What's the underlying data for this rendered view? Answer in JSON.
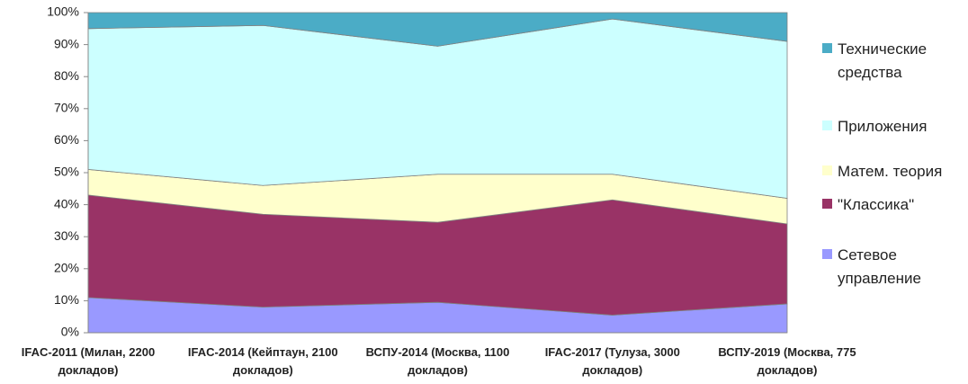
{
  "chart_data": {
    "type": "stacked_area",
    "categories": [
      "IFAC-2011 (Милан, 2200 докладов)",
      "IFAC-2014 (Кейптаун, 2100 докладов)",
      "ВСПУ-2014 (Москва, 1100 докладов)",
      "IFAC-2017 (Тулуза, 3000 докладов)",
      "ВСПУ-2019 (Москва, 775 докладов)"
    ],
    "series": [
      {
        "name": "Сетевое управление",
        "color": "#9999ff",
        "values": [
          11,
          8,
          9.5,
          5.5,
          9
        ]
      },
      {
        "name": "\"Классика\"",
        "color": "#993366",
        "values": [
          32,
          29,
          25,
          36,
          25
        ]
      },
      {
        "name": "Матем. теория",
        "color": "#ffffcc",
        "values": [
          8,
          9,
          15,
          8,
          8
        ]
      },
      {
        "name": "Приложения",
        "color": "#ccffff",
        "values": [
          44,
          50,
          40,
          48.5,
          49
        ]
      },
      {
        "name": "Технические средства",
        "color": "#4bacc6",
        "values": [
          5,
          4,
          10.5,
          2,
          9
        ]
      }
    ],
    "ylim": [
      0,
      100
    ],
    "yticks": [
      {
        "value": 0,
        "label": "0%"
      },
      {
        "value": 10,
        "label": "10%"
      },
      {
        "value": 20,
        "label": "20%"
      },
      {
        "value": 30,
        "label": "30%"
      },
      {
        "value": 40,
        "label": "40%"
      },
      {
        "value": 50,
        "label": "50%"
      },
      {
        "value": 60,
        "label": "60%"
      },
      {
        "value": 70,
        "label": "70%"
      },
      {
        "value": 80,
        "label": "80%"
      },
      {
        "value": 90,
        "label": "90%"
      },
      {
        "value": 100,
        "label": "100%"
      }
    ],
    "legend": "right"
  }
}
